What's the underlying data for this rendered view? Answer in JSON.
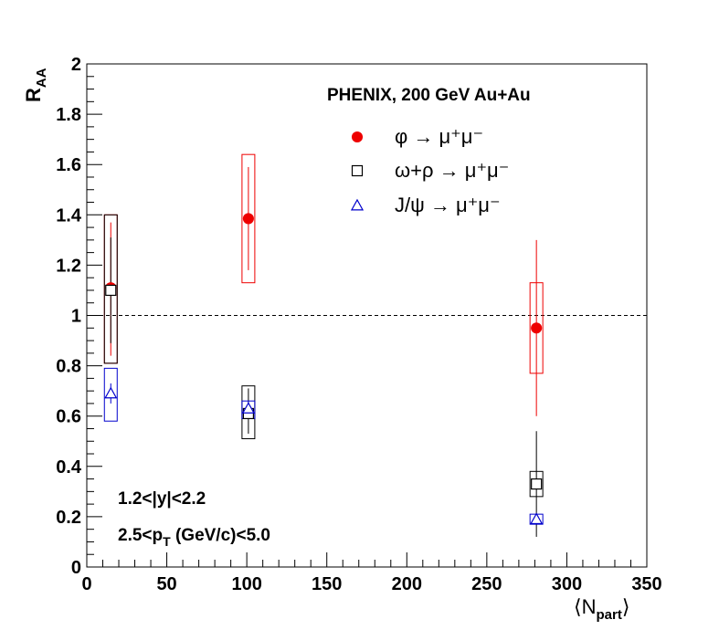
{
  "chart_data": {
    "type": "scatter",
    "title": "PHENIX, 200 GeV Au+Au",
    "xlabel": "⟨N_part⟩",
    "ylabel": "R_AA",
    "xlim": [
      0,
      350
    ],
    "ylim": [
      0,
      2
    ],
    "x_ticks": [
      "0",
      "50",
      "100",
      "150",
      "200",
      "250",
      "300",
      "350"
    ],
    "y_ticks": [
      "0",
      "0.2",
      "0.4",
      "0.6",
      "0.8",
      "1",
      "1.2",
      "1.4",
      "1.6",
      "1.8",
      "2"
    ],
    "reference_line": {
      "y": 1,
      "style": "dashed"
    },
    "grid": false,
    "legend_position": "top-right",
    "annotations": [
      "1.2<|y|<2.2",
      "2.5<p_T (GeV/c)<5.0"
    ],
    "series": [
      {
        "name": "φ → μ⁺μ⁻",
        "marker": "filled-circle",
        "color": "#ee0000",
        "points": [
          {
            "x": 15,
            "y": 1.11,
            "stat_lo": 0.84,
            "stat_hi": 1.37,
            "sys_lo": 0.81,
            "sys_hi": 1.4
          },
          {
            "x": 101,
            "y": 1.385,
            "stat_lo": 1.18,
            "stat_hi": 1.59,
            "sys_lo": 1.13,
            "sys_hi": 1.64
          },
          {
            "x": 281,
            "y": 0.95,
            "stat_lo": 0.6,
            "stat_hi": 1.3,
            "sys_lo": 0.77,
            "sys_hi": 1.13
          }
        ]
      },
      {
        "name": "ω+ρ → μ⁺μ⁻",
        "marker": "open-square",
        "color": "#000000",
        "points": [
          {
            "x": 15,
            "y": 1.1,
            "stat_lo": 0.89,
            "stat_hi": 1.31,
            "sys_lo": 0.81,
            "sys_hi": 1.4
          },
          {
            "x": 101,
            "y": 0.61,
            "stat_lo": 0.53,
            "stat_hi": 0.71,
            "sys_lo": 0.51,
            "sys_hi": 0.72
          },
          {
            "x": 281,
            "y": 0.33,
            "stat_lo": 0.12,
            "stat_hi": 0.54,
            "sys_lo": 0.28,
            "sys_hi": 0.38
          }
        ]
      },
      {
        "name": "J/ψ → μ⁺μ⁻",
        "marker": "open-triangle",
        "color": "#0000cc",
        "points": [
          {
            "x": 15,
            "y": 0.69,
            "stat_lo": 0.65,
            "stat_hi": 0.73,
            "sys_lo": 0.58,
            "sys_hi": 0.79
          },
          {
            "x": 101,
            "y": 0.63,
            "stat_lo": 0.6,
            "stat_hi": 0.66,
            "sys_lo": 0.59,
            "sys_hi": 0.66
          },
          {
            "x": 281,
            "y": 0.19,
            "stat_lo": 0.17,
            "stat_hi": 0.21,
            "sys_lo": 0.17,
            "sys_hi": 0.21
          }
        ]
      }
    ]
  }
}
